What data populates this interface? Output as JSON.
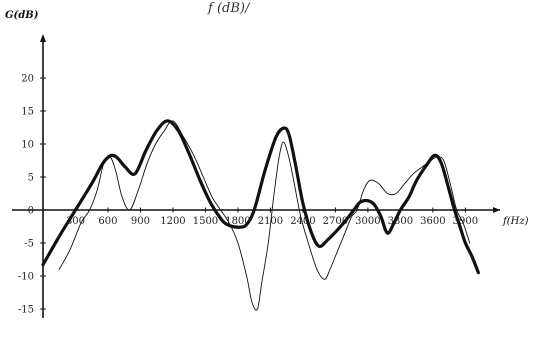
{
  "top_fragment": "f (dB)/",
  "chart_data": {
    "type": "line",
    "ylabel": "G(dB)",
    "xlabel": "f(Hz)",
    "xlim": [
      0,
      4200
    ],
    "ylim": [
      -15,
      25
    ],
    "x_ticks": [
      300,
      600,
      900,
      1200,
      1500,
      1800,
      2100,
      2400,
      2700,
      3000,
      3300,
      3600,
      3900
    ],
    "x_tick_labels": [
      "300",
      "600",
      "900",
      "1200",
      "1500",
      "1800",
      "2100",
      "2400",
      "2700",
      "3000",
      "3300",
      "3600",
      "3900"
    ],
    "y_ticks": [
      20,
      15,
      10,
      5,
      0,
      -5,
      -10,
      -15
    ],
    "y_tick_labels": [
      "20",
      "15",
      "10",
      "5",
      "0",
      "-5",
      "-10",
      "-15"
    ],
    "grid": false,
    "series": [
      {
        "style": "thick",
        "x": [
          0,
          150,
          300,
          450,
          550,
          620,
          680,
          760,
          850,
          950,
          1050,
          1150,
          1250,
          1350,
          1450,
          1550,
          1650,
          1700,
          1750,
          1820,
          1880,
          1950,
          2050,
          2150,
          2220,
          2270,
          2330,
          2400,
          2480,
          2550,
          2630,
          2720,
          2800,
          2870,
          2930,
          3000,
          3060,
          3120,
          3180,
          3240,
          3300,
          3380,
          3450,
          3550,
          3620,
          3680,
          3750,
          3800,
          3850,
          3900,
          3960,
          4020
        ],
        "y": [
          -8.3,
          -4,
          0,
          4,
          7,
          8.2,
          8,
          6.5,
          5.5,
          9,
          12,
          13.5,
          12,
          8.5,
          4.5,
          1,
          -1.5,
          -2.2,
          -2.5,
          -2.6,
          -2.2,
          0,
          6,
          11,
          12.4,
          11.5,
          7,
          1,
          -3.5,
          -5.5,
          -4.5,
          -3,
          -1.5,
          0,
          1.2,
          1.4,
          0.8,
          -1,
          -3.5,
          -2,
          0,
          2,
          4.5,
          7,
          8.3,
          7,
          3,
          0,
          -2.5,
          -5,
          -7,
          -9.5
        ]
      },
      {
        "style": "thin",
        "x": [
          150,
          250,
          350,
          430,
          500,
          560,
          620,
          670,
          730,
          800,
          880,
          960,
          1040,
          1120,
          1200,
          1300,
          1400,
          1480,
          1560,
          1640,
          1720,
          1800,
          1880,
          1930,
          1980,
          2020,
          2080,
          2130,
          2180,
          2220,
          2270,
          2320,
          2380,
          2450,
          2530,
          2600,
          2650,
          2700,
          2750,
          2800,
          2850,
          2900,
          2960,
          3020,
          3100,
          3180,
          3260,
          3340,
          3420,
          3500,
          3580,
          3640,
          3700,
          3760,
          3820,
          3880,
          3940
        ],
        "y": [
          -9,
          -6,
          -2,
          0,
          3,
          7,
          8,
          6,
          2,
          0,
          3,
          7,
          10,
          12,
          13.5,
          11,
          8,
          5,
          2,
          0,
          -2,
          -5,
          -10,
          -14,
          -15,
          -11,
          -5,
          2,
          8,
          10.3,
          8,
          4,
          -1,
          -5,
          -9,
          -10.5,
          -9,
          -7,
          -5,
          -3,
          -1,
          0,
          3,
          4.5,
          4,
          2.5,
          2.5,
          4,
          5.5,
          6.5,
          7.5,
          8,
          7.5,
          4,
          0,
          -2,
          -5
        ]
      }
    ]
  }
}
